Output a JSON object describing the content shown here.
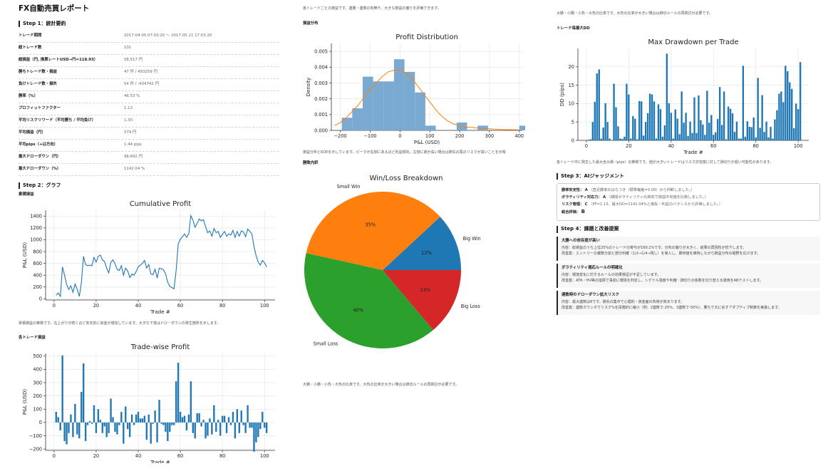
{
  "report": {
    "title": "FX自動売買レポート",
    "step1_heading": "Step 1：統計要約",
    "step2_heading": "Step 2：グラフ",
    "step3_heading": "Step 3：AIジャッジメント",
    "step4_heading": "Step 4：課題と改善提案"
  },
  "summary": [
    {
      "label": "トレード期間",
      "value": "2017-04-05 07:03:20 〜 2017-05-11 17:03:20"
    },
    {
      "label": "総トレード数",
      "value": "101"
    },
    {
      "label": "総損益（円, 換算レートUSD→円=118.93）",
      "value": "58,517 円"
    },
    {
      "label": "勝ちトレード数・損益",
      "value": "47 件 / 493259 円"
    },
    {
      "label": "負けトレード数・損失",
      "value": "54 件 / -434742 円"
    },
    {
      "label": "勝率（%）",
      "value": "46.53 %"
    },
    {
      "label": "プロフィットファクター",
      "value": "1.13"
    },
    {
      "label": "平均リスクリワード（平均勝ち / 平均負け）",
      "value": "1.30"
    },
    {
      "label": "平均損益（円）",
      "value": "579 円"
    },
    {
      "label": "平均pips（+は方向）",
      "value": "1.44 pips"
    },
    {
      "label": "最大ドローダウン（円）",
      "value": "98,642 円"
    },
    {
      "label": "最大ドローダウン（%）",
      "value": "1142.04 %"
    }
  ],
  "sections": {
    "cumulative_label": "累積損益",
    "cumulative_caption": "累積損益の推移です。右上がりが続くほど安定的に資金が増加しています。大きな下落はドローダウンの発生箇所を示します。",
    "tradewise_label": "各トレード損益",
    "tradewise_caption": "各トレードごとの損益です。連勝・連敗の有無や、大きな損益の偏りを評価できます。",
    "distribution_label": "損益分布",
    "distribution_caption": "損益分布とKDEを示しています。ピークが右側にあるほど利益傾向。左側に裾が長い場合は損失の尾のリスクが高いことを示唆",
    "pie_label": "勝敗内訳",
    "pie_caption": "大勝・小勝・小負・大負の比率です。大負の比率が大きい場合は損切ルールの再検討が必要です。",
    "col3_top_caption": "大勝・小勝・小負・大負の比率です。大負の比率が大きい場合は損切ルールの再検討が必要です。",
    "dd_label": "トレード毎最大DD",
    "dd_caption": "各トレード中に発生した最大含み損（pips）の推移です。値が大きいトレードはリスク許容度に対して損切りが遅い可能性があります。"
  },
  "judgement": {
    "rows": [
      {
        "label": "勝率安定性：",
        "grade": "A",
        "note": "（直近勝率のばらつき（標準偏差=0.09）から判断しました。）"
      },
      {
        "label": "ボラティリティ対応力：",
        "grade": "A",
        "note": "（期間ボラティリティの高低で損益中央値を比較しました。）"
      },
      {
        "label": "リスク管理：",
        "grade": "C",
        "note": "（PF=1.13、最大DD=1142.04%と損失・利益のバランスから評価しました。）"
      }
    ],
    "total_label": "総合評価：",
    "total_grade": "B"
  },
  "proposals": [
    {
      "title": "大勝への依存度が高い",
      "content": "内容：総損益のうち上位25%のトレードの寄与が169.1%です。分布の偏りが大きく、結果の再現性が低下します。",
      "improve": "改善案：エントリーの複数分割と部分利確（1/2→1/4→残し）を導入し、期待値を維持しながら損益分布の裾野を広げます。"
    },
    {
      "title": "ボラティリティ適応ルールの明確化",
      "content": "内容：環境変化に対するルールの効果検証が不足しています。",
      "improve": "改善案：ATR・HV等の指標で事前に環境を判定し、シグナル強度や利確・損切りの係数を切り替える運用をABテストします。"
    },
    {
      "title": "連敗時のドローダウン拡大リスク",
      "content": "内容：最大連敗は8です。損失の集中で心理的・資金面の負荷が高まります。",
      "improve": "改善案：連敗カウンタでリスク%を段階的に縮小（例：2連敗で-25%、3連敗で-50%）、勝ちで元に戻すアダプティブ制御を実装します。"
    }
  ],
  "colors": {
    "bar_blue": "#1f77b4",
    "hist_blue": "#7aa9d1",
    "kde_orange": "#ff7f0e",
    "pie_blue": "#1f77b4",
    "pie_orange": "#ff7f0e",
    "pie_green": "#2ca02c",
    "pie_red": "#d62728"
  },
  "chart_data": [
    {
      "id": "cumulative",
      "type": "line",
      "title": "Cumulative Profit",
      "xlabel": "Trade #",
      "ylabel": "P&L (USD)",
      "xlim": [
        -4,
        105
      ],
      "ylim": [
        -20,
        1500
      ],
      "xticks": [
        0,
        20,
        40,
        60,
        80,
        100
      ],
      "yticks": [
        0,
        200,
        400,
        600,
        800,
        1000,
        1200,
        1400
      ],
      "grid": true,
      "x": [
        1,
        2,
        3,
        4,
        5,
        6,
        7,
        8,
        9,
        10,
        11,
        12,
        13,
        14,
        15,
        16,
        17,
        18,
        19,
        20,
        21,
        22,
        23,
        24,
        25,
        26,
        27,
        28,
        29,
        30,
        31,
        32,
        33,
        34,
        35,
        36,
        37,
        38,
        39,
        40,
        41,
        42,
        43,
        44,
        45,
        46,
        47,
        48,
        49,
        50,
        51,
        52,
        53,
        54,
        55,
        56,
        57,
        58,
        59,
        60,
        61,
        62,
        63,
        64,
        65,
        66,
        67,
        68,
        69,
        70,
        71,
        72,
        73,
        74,
        75,
        76,
        77,
        78,
        79,
        80,
        81,
        82,
        83,
        84,
        85,
        86,
        87,
        88,
        89,
        90,
        91,
        92,
        93,
        94,
        95,
        96,
        97,
        98,
        99,
        100,
        101
      ],
      "y": [
        60,
        100,
        40,
        540,
        400,
        240,
        160,
        220,
        110,
        250,
        160,
        40,
        270,
        720,
        580,
        560,
        570,
        560,
        700,
        620,
        720,
        740,
        660,
        630,
        520,
        440,
        620,
        660,
        590,
        500,
        480,
        560,
        400,
        520,
        470,
        360,
        420,
        400,
        460,
        540,
        570,
        600,
        650,
        520,
        580,
        420,
        410,
        500,
        350,
        520,
        510,
        490,
        420,
        280,
        210,
        190,
        170,
        480,
        930,
        1010,
        1050,
        1100,
        1040,
        1100,
        1410,
        1330,
        1210,
        1280,
        1350,
        1320,
        1340,
        1220,
        1120,
        1150,
        1060,
        1190,
        1120,
        1140,
        1040,
        1090,
        1140,
        1060,
        1100,
        1080,
        1160,
        1040,
        1140,
        1060,
        1150,
        1130,
        1050,
        1180,
        1140,
        1100,
        880,
        730,
        620,
        570,
        650,
        610,
        540
      ]
    },
    {
      "id": "tradewise",
      "type": "bar",
      "title": "Trade-wise Profit",
      "xlabel": "Trade #",
      "ylabel": "P&L (USD)",
      "xlim": [
        -4,
        105
      ],
      "ylim": [
        -210,
        520
      ],
      "xticks": [
        0,
        20,
        40,
        60,
        80,
        100
      ],
      "yticks": [
        -200,
        -100,
        0,
        100,
        200,
        300,
        400,
        500
      ],
      "grid": true,
      "x": [
        1,
        2,
        3,
        4,
        5,
        6,
        7,
        8,
        9,
        10,
        11,
        12,
        13,
        14,
        15,
        16,
        17,
        18,
        19,
        20,
        21,
        22,
        23,
        24,
        25,
        26,
        27,
        28,
        29,
        30,
        31,
        32,
        33,
        34,
        35,
        36,
        37,
        38,
        39,
        40,
        41,
        42,
        43,
        44,
        45,
        46,
        47,
        48,
        49,
        50,
        51,
        52,
        53,
        54,
        55,
        56,
        57,
        58,
        59,
        60,
        61,
        62,
        63,
        64,
        65,
        66,
        67,
        68,
        69,
        70,
        71,
        72,
        73,
        74,
        75,
        76,
        77,
        78,
        79,
        80,
        81,
        82,
        83,
        84,
        85,
        86,
        87,
        88,
        89,
        90,
        91,
        92,
        93,
        94,
        95,
        96,
        97,
        98,
        99,
        100,
        101
      ],
      "values": [
        80,
        40,
        -60,
        505,
        -140,
        -165,
        -80,
        60,
        -110,
        140,
        -90,
        -120,
        230,
        445,
        -140,
        -20,
        10,
        -10,
        130,
        -80,
        100,
        20,
        -80,
        -30,
        -110,
        -80,
        180,
        40,
        -70,
        -90,
        -20,
        80,
        -160,
        120,
        -50,
        -110,
        60,
        -20,
        60,
        80,
        30,
        30,
        50,
        -130,
        60,
        -160,
        -10,
        90,
        -150,
        170,
        -10,
        -20,
        -70,
        -140,
        -70,
        -20,
        -20,
        310,
        450,
        80,
        40,
        50,
        -60,
        60,
        310,
        -80,
        -120,
        70,
        70,
        -30,
        20,
        -120,
        -100,
        30,
        -90,
        130,
        -70,
        20,
        -100,
        50,
        50,
        -80,
        40,
        -20,
        80,
        -120,
        100,
        -80,
        90,
        -20,
        -80,
        130,
        -40,
        -40,
        -220,
        -150,
        -110,
        -50,
        80,
        -40,
        -80
      ]
    },
    {
      "id": "distribution",
      "type": "bar",
      "title": "Profit Distribution",
      "xlabel": "P&L (USD)",
      "ylabel": "Density",
      "xlim": [
        -230,
        410
      ],
      "ylim": [
        0,
        0.0055
      ],
      "xticks": [
        -200,
        -100,
        0,
        100,
        200,
        300,
        400
      ],
      "yticks": [
        0.0,
        0.001,
        0.002,
        0.003,
        0.004,
        0.005
      ],
      "grid": true,
      "bins": [
        [
          -195,
          -160
        ],
        [
          -160,
          -125
        ],
        [
          -125,
          -90
        ],
        [
          -90,
          -55
        ],
        [
          -55,
          -20
        ],
        [
          -20,
          15
        ],
        [
          15,
          50
        ],
        [
          50,
          85
        ],
        [
          85,
          120
        ],
        [
          120,
          155
        ],
        [
          155,
          190
        ],
        [
          190,
          225
        ],
        [
          225,
          260
        ],
        [
          260,
          295
        ],
        [
          295,
          330
        ],
        [
          330,
          365
        ],
        [
          365,
          400
        ],
        [
          400,
          435
        ]
      ],
      "values": [
        0.0008,
        0.0014,
        0.0034,
        0.0031,
        0.0031,
        0.0045,
        0.0037,
        0.0024,
        0.0003,
        0.0,
        0.0,
        0.0005,
        0.0,
        0.0003,
        0.0,
        0.0,
        0.0,
        0.0003
      ],
      "kde_x": [
        -220,
        -200,
        -180,
        -160,
        -140,
        -120,
        -100,
        -80,
        -60,
        -40,
        -20,
        0,
        20,
        40,
        60,
        80,
        100,
        120,
        140,
        160,
        180,
        200,
        220,
        240,
        260,
        280,
        300,
        320,
        340,
        360,
        380,
        400
      ],
      "kde_y": [
        0.0003,
        0.0005,
        0.0008,
        0.0012,
        0.0016,
        0.0021,
        0.0026,
        0.003,
        0.0034,
        0.0037,
        0.0038,
        0.0038,
        0.0036,
        0.0033,
        0.0028,
        0.0023,
        0.0018,
        0.0013,
        0.0009,
        0.0006,
        0.0004,
        0.0003,
        0.0002,
        0.0002,
        0.00015,
        0.0001,
        0.0001,
        8e-05,
        6e-05,
        5e-05,
        4e-05,
        3e-05
      ]
    },
    {
      "id": "pie",
      "type": "pie",
      "title": "Win/Loss Breakdown",
      "labels": [
        "Big Win",
        "Small Win",
        "Small Loss",
        "Big Loss"
      ],
      "values": [
        12,
        35,
        40,
        14
      ],
      "autopct": [
        "12%",
        "35%",
        "40%",
        "14%"
      ]
    },
    {
      "id": "drawdown",
      "type": "bar",
      "title": "Max Drawdown per Trade",
      "xlabel": "Trade #",
      "ylabel": "DD (pips)",
      "xlim": [
        -4,
        105
      ],
      "ylim": [
        0,
        25
      ],
      "xticks": [
        0,
        20,
        40,
        60,
        80,
        100
      ],
      "yticks": [
        0,
        5,
        10,
        15,
        20
      ],
      "grid": true,
      "x": [
        1,
        2,
        3,
        4,
        5,
        6,
        7,
        8,
        9,
        10,
        11,
        12,
        13,
        14,
        15,
        16,
        17,
        18,
        19,
        20,
        21,
        22,
        23,
        24,
        25,
        26,
        27,
        28,
        29,
        30,
        31,
        32,
        33,
        34,
        35,
        36,
        37,
        38,
        39,
        40,
        41,
        42,
        43,
        44,
        45,
        46,
        47,
        48,
        49,
        50,
        51,
        52,
        53,
        54,
        55,
        56,
        57,
        58,
        59,
        60,
        61,
        62,
        63,
        64,
        65,
        66,
        67,
        68,
        69,
        70,
        71,
        72,
        73,
        74,
        75,
        76,
        77,
        78,
        79,
        80,
        81,
        82,
        83,
        84,
        85,
        86,
        87,
        88,
        89,
        90,
        91,
        92,
        93,
        94,
        95,
        96,
        97,
        98,
        99,
        100,
        101
      ],
      "values": [
        0.2,
        0.3,
        5,
        10.5,
        18.2,
        19.3,
        0.5,
        3.5,
        10.1,
        5,
        0.5,
        0,
        15.4,
        9,
        3.8,
        0.5,
        0.4,
        1,
        15.4,
        12.5,
        0.5,
        6.6,
        5.9,
        0.3,
        10.7,
        10.6,
        1.3,
        5,
        7.4,
        12.7,
        12.5,
        10.6,
        0.5,
        9.8,
        8.5,
        1,
        4.1,
        23.6,
        10.1,
        7.5,
        0.5,
        8.4,
        5.9,
        1.7,
        13.3,
        4.8,
        7.5,
        1.2,
        5.1,
        2,
        11.7,
        2,
        12.2,
        5.5,
        4.3,
        1.5,
        13.5,
        4.8,
        6.9,
        1.5,
        2.2,
        5.8,
        14.5,
        4.2,
        13.3,
        0.3,
        9.2,
        8.6,
        7.4,
        2.3,
        5.1,
        0.5,
        0.5,
        20.3,
        1,
        5.2,
        3.7,
        3.6,
        6.2,
        0.8,
        17,
        3.4,
        12.3,
        2.3,
        5.1,
        0.8,
        3.7,
        0.5,
        5.7,
        8.2,
        12.7,
        13.3,
        10.4,
        20.3,
        18.8,
        15.8,
        14,
        3.3,
        10,
        8.5,
        21.3
      ]
    }
  ]
}
